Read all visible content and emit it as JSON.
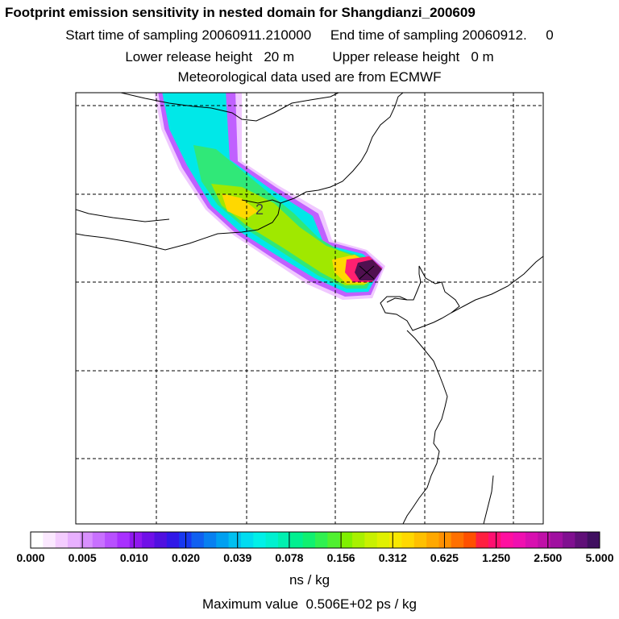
{
  "header": {
    "title": "Footprint emission sensitivity in nested domain for Shangdianzi_200609",
    "start_label": "Start time of sampling",
    "start_value": "20060911.210000",
    "end_label": "End time of sampling",
    "end_value": "20060912.     0",
    "lower_label": "Lower release height",
    "lower_value": "20 m",
    "upper_label": "Upper release height",
    "upper_value": "0 m",
    "met_line": "Meteorological data used are from ECMWF"
  },
  "map": {
    "contour_label": "2",
    "plume_colors": [
      "#f0c8ff",
      "#c060ff",
      "#00e8e8",
      "#30e878",
      "#a0e800",
      "#ffd800",
      "#ff9000",
      "#ff2070",
      "#501050"
    ]
  },
  "colorbar": {
    "tick_labels": [
      "0.000",
      "0.005",
      "0.010",
      "0.020",
      "0.039",
      "0.078",
      "0.156",
      "0.312",
      "0.625",
      "1.250",
      "2.500",
      "5.000"
    ],
    "colors": [
      "#ffffff",
      "#fbe8ff",
      "#f4ccff",
      "#e8b0ff",
      "#d890ff",
      "#c870ff",
      "#b850ff",
      "#a830ff",
      "#9018f0",
      "#7010e8",
      "#5010e0",
      "#3018e8",
      "#1838f0",
      "#1060f0",
      "#0880f0",
      "#00a0f0",
      "#00c0f0",
      "#00dcf0",
      "#00f0e8",
      "#00f0d0",
      "#00f0b0",
      "#00f090",
      "#10f070",
      "#30f050",
      "#50f030",
      "#80f000",
      "#a8f000",
      "#c8f000",
      "#e0f000",
      "#f8e800",
      "#ffd800",
      "#ffc000",
      "#ffa800",
      "#ff9000",
      "#ff7000",
      "#ff5000",
      "#ff2040",
      "#ff1070",
      "#ff10a0",
      "#f010b0",
      "#d810b0",
      "#c010a8",
      "#a010a0",
      "#801090",
      "#601078",
      "#401060"
    ],
    "units": "ns / kg"
  },
  "footer": {
    "max_label": "Maximum value",
    "max_value": "0.506E+02 ps / kg"
  }
}
